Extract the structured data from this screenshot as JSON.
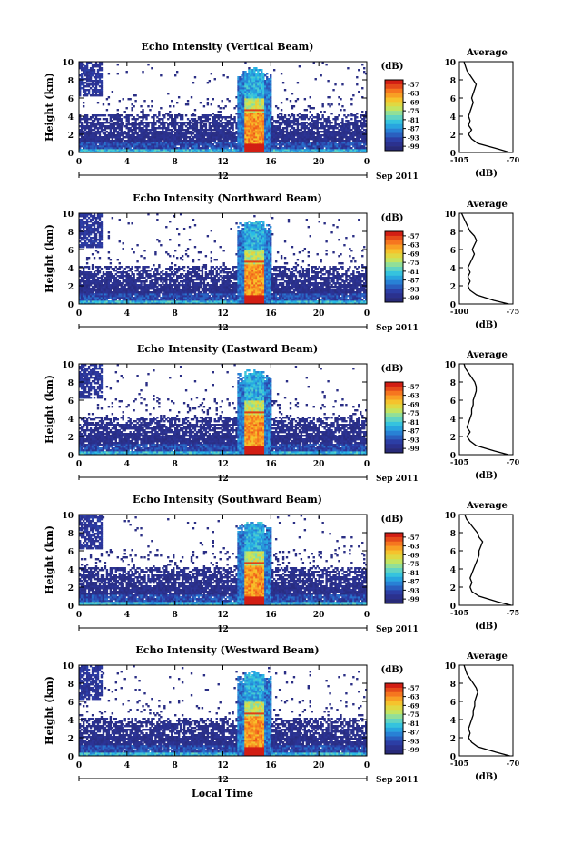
{
  "figure": {
    "xlabel": "Local Time",
    "date_label": "Sep 2011",
    "colorbar_unit": "(dB)",
    "average_title": "Average",
    "average_unit": "(dB)",
    "height_label": "Height (km)"
  },
  "chart_data": [
    {
      "type": "heatmap",
      "title": "Echo Intensity (Vertical Beam)",
      "ylabel": "Height (km)",
      "xlabel": "",
      "x_ticks": [
        "0",
        "4",
        "8",
        "12",
        "16",
        "20",
        "0"
      ],
      "x_center_label": "12",
      "x_range": [
        0,
        24
      ],
      "y_range": [
        0,
        10
      ],
      "y_ticks": [
        0,
        2,
        4,
        6,
        8,
        10
      ],
      "colorbar": {
        "unit": "(dB)",
        "ticks": [
          "-57",
          "-63",
          "-69",
          "-75",
          "-81",
          "-87",
          "-93",
          "-99"
        ]
      }
    },
    {
      "type": "line",
      "title": "Average",
      "xlabel": "(dB)",
      "ylabel": "",
      "xlim": [
        -105,
        -70
      ],
      "x_ticks": [
        "-105",
        "-70"
      ],
      "y_ticks": [
        0,
        2,
        4,
        6,
        8,
        10
      ],
      "profile": {
        "height_km": [
          0,
          0.4,
          1,
          1.5,
          2,
          2.5,
          3,
          3.5,
          4,
          4.5,
          5,
          5.5,
          6,
          6.5,
          7,
          7.5,
          8,
          8.5,
          9,
          9.5,
          10
        ],
        "db": [
          -72,
          -80,
          -93,
          -97,
          -99,
          -97,
          -99,
          -98,
          -99,
          -98,
          -97,
          -96,
          -97,
          -96,
          -95,
          -94,
          -96,
          -98,
          -100,
          -101,
          -102
        ]
      }
    },
    {
      "type": "heatmap",
      "title": "Echo Intensity (Northward Beam)",
      "ylabel": "Height (km)",
      "xlabel": "",
      "x_ticks": [
        "0",
        "4",
        "8",
        "12",
        "16",
        "20",
        "0"
      ],
      "x_center_label": "12",
      "x_range": [
        0,
        24
      ],
      "y_range": [
        0,
        10
      ],
      "y_ticks": [
        0,
        2,
        4,
        6,
        8,
        10
      ],
      "colorbar": {
        "unit": "(dB)",
        "ticks": [
          "-57",
          "-63",
          "-69",
          "-75",
          "-81",
          "-87",
          "-93",
          "-99"
        ]
      }
    },
    {
      "type": "line",
      "title": "Average",
      "xlabel": "(dB)",
      "ylabel": "",
      "xlim": [
        -100,
        -75
      ],
      "x_ticks": [
        "-100",
        "-75"
      ],
      "y_ticks": [
        0,
        2,
        4,
        6,
        8,
        10
      ],
      "profile": {
        "height_km": [
          0,
          0.4,
          1,
          1.5,
          2,
          2.5,
          3,
          3.5,
          4,
          4.5,
          5,
          5.5,
          6,
          6.5,
          7,
          7.5,
          8,
          8.5,
          9,
          9.5,
          10
        ],
        "db": [
          -77,
          -84,
          -92,
          -95,
          -96,
          -95,
          -96,
          -95,
          -96,
          -95,
          -94,
          -93,
          -94,
          -93,
          -92,
          -93,
          -95,
          -96,
          -97,
          -98,
          -99
        ]
      }
    },
    {
      "type": "heatmap",
      "title": "Echo Intensity (Eastward Beam)",
      "ylabel": "Height (km)",
      "xlabel": "",
      "x_ticks": [
        "0",
        "4",
        "8",
        "12",
        "16",
        "20",
        "0"
      ],
      "x_center_label": "12",
      "x_range": [
        0,
        24
      ],
      "y_range": [
        0,
        10
      ],
      "y_ticks": [
        0,
        2,
        4,
        6,
        8,
        10
      ],
      "colorbar": {
        "unit": "(dB)",
        "ticks": [
          "-57",
          "-63",
          "-69",
          "-75",
          "-81",
          "-87",
          "-93",
          "-99"
        ]
      }
    },
    {
      "type": "line",
      "title": "Average",
      "xlabel": "(dB)",
      "ylabel": "",
      "xlim": [
        -105,
        -70
      ],
      "x_ticks": [
        "-105",
        "-70"
      ],
      "y_ticks": [
        0,
        2,
        4,
        6,
        8,
        10
      ],
      "profile": {
        "height_km": [
          0,
          0.4,
          1,
          1.5,
          2,
          2.5,
          3,
          3.5,
          4,
          4.5,
          5,
          5.5,
          6,
          6.5,
          7,
          7.5,
          8,
          8.5,
          9,
          9.5,
          10
        ],
        "db": [
          -73,
          -82,
          -94,
          -98,
          -100,
          -98,
          -100,
          -99,
          -98,
          -97,
          -97,
          -96,
          -96,
          -95,
          -94,
          -94,
          -95,
          -97,
          -99,
          -101,
          -102
        ]
      }
    },
    {
      "type": "heatmap",
      "title": "Echo Intensity (Southward Beam)",
      "ylabel": "Height (km)",
      "xlabel": "",
      "x_ticks": [
        "0",
        "4",
        "8",
        "12",
        "16",
        "20",
        "0"
      ],
      "x_center_label": "12",
      "x_range": [
        0,
        24
      ],
      "y_range": [
        0,
        10
      ],
      "y_ticks": [
        0,
        2,
        4,
        6,
        8,
        10
      ],
      "colorbar": {
        "unit": "(dB)",
        "ticks": [
          "-57",
          "-63",
          "-69",
          "-75",
          "-81",
          "-87",
          "-93",
          "-99"
        ]
      }
    },
    {
      "type": "line",
      "title": "Average",
      "xlabel": "(dB)",
      "ylabel": "",
      "xlim": [
        -105,
        -75
      ],
      "x_ticks": [
        "-105",
        "-75"
      ],
      "y_ticks": [
        0,
        2,
        4,
        6,
        8,
        10
      ],
      "profile": {
        "height_km": [
          0,
          0.4,
          1,
          1.5,
          2,
          2.5,
          3,
          3.5,
          4,
          4.5,
          5,
          5.5,
          6,
          6.5,
          7,
          7.5,
          8,
          8.5,
          9,
          9.5,
          10
        ],
        "db": [
          -76,
          -84,
          -94,
          -98,
          -99,
          -98,
          -99,
          -98,
          -97,
          -96,
          -95,
          -94,
          -94,
          -93,
          -92,
          -94,
          -95,
          -97,
          -99,
          -101,
          -102
        ]
      }
    },
    {
      "type": "heatmap",
      "title": "Echo Intensity (Westward Beam)",
      "ylabel": "Height (km)",
      "xlabel": "Local Time",
      "x_ticks": [
        "0",
        "4",
        "8",
        "12",
        "16",
        "20",
        "0"
      ],
      "x_center_label": "12",
      "x_range": [
        0,
        24
      ],
      "y_range": [
        0,
        10
      ],
      "y_ticks": [
        0,
        2,
        4,
        6,
        8,
        10
      ],
      "colorbar": {
        "unit": "(dB)",
        "ticks": [
          "-57",
          "-63",
          "-69",
          "-75",
          "-81",
          "-87",
          "-93",
          "-99"
        ]
      }
    },
    {
      "type": "line",
      "title": "Average",
      "xlabel": "(dB)",
      "ylabel": "",
      "xlim": [
        -105,
        -70
      ],
      "x_ticks": [
        "-105",
        "-70"
      ],
      "y_ticks": [
        0,
        2,
        4,
        6,
        8,
        10
      ],
      "profile": {
        "height_km": [
          0,
          0.4,
          1,
          1.5,
          2,
          2.5,
          3,
          3.5,
          4,
          4.5,
          5,
          5.5,
          6,
          6.5,
          7,
          7.5,
          8,
          8.5,
          9,
          9.5,
          10
        ],
        "db": [
          -72,
          -81,
          -93,
          -97,
          -99,
          -98,
          -99,
          -98,
          -97,
          -96,
          -96,
          -95,
          -95,
          -94,
          -93,
          -94,
          -96,
          -98,
          -100,
          -101,
          -102
        ]
      }
    }
  ]
}
